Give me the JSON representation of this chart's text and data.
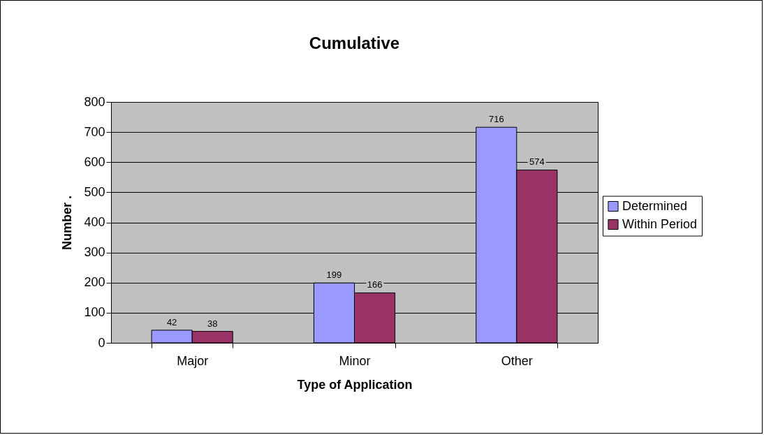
{
  "chart_data": {
    "type": "bar",
    "title": "Cumulative",
    "xlabel": "Type of Application",
    "ylabel": "Number  .",
    "categories": [
      "Major",
      "Minor",
      "Other"
    ],
    "series": [
      {
        "name": "Determined",
        "color": "#9999ff",
        "values": [
          42,
          199,
          716
        ]
      },
      {
        "name": "Within Period",
        "color": "#993366",
        "values": [
          38,
          166,
          574
        ]
      }
    ],
    "ylim": [
      0,
      800
    ],
    "yticks": [
      0,
      100,
      200,
      300,
      400,
      500,
      600,
      700,
      800
    ],
    "grid": "y",
    "legend": "right",
    "data_labels": true
  }
}
